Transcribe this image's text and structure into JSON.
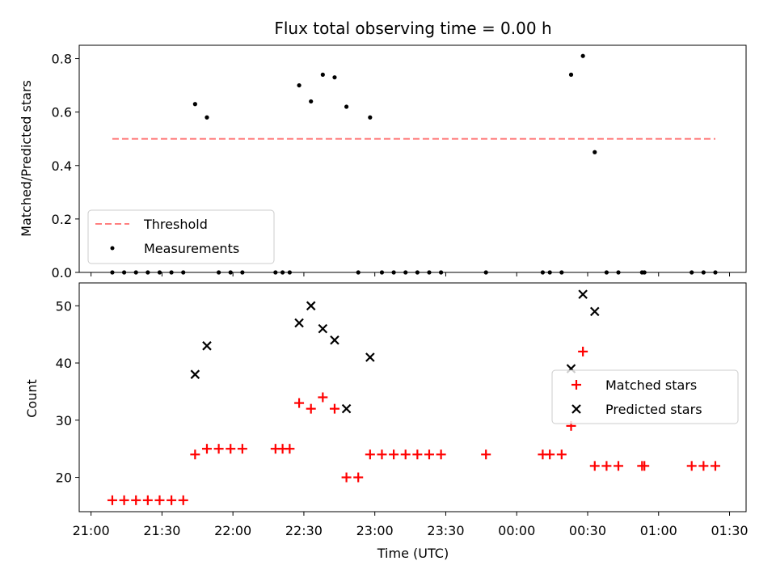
{
  "chart_data": [
    {
      "type": "scatter",
      "title": "Flux total observing time = 0.00 h",
      "ylabel": "Matched/Predicted stars",
      "xlabel": "",
      "ylim": [
        0,
        0.85
      ],
      "yticks": [
        "0.0",
        "0.2",
        "0.4",
        "0.6",
        "0.8"
      ],
      "legend": "lower-left",
      "threshold": {
        "name": "Threshold",
        "value": 0.5,
        "x_start": "21:09",
        "x_end": "01:24",
        "color": "#ff7f7f"
      },
      "series": [
        {
          "name": "Measurements",
          "color": "#000000",
          "points": [
            [
              "21:09",
              0
            ],
            [
              "21:14",
              0
            ],
            [
              "21:19",
              0
            ],
            [
              "21:24",
              0
            ],
            [
              "21:29",
              0
            ],
            [
              "21:34",
              0
            ],
            [
              "21:39",
              0
            ],
            [
              "21:44",
              0.63
            ],
            [
              "21:49",
              0.58
            ],
            [
              "21:54",
              0
            ],
            [
              "21:59",
              0
            ],
            [
              "22:04",
              0
            ],
            [
              "22:18",
              0
            ],
            [
              "22:21",
              0
            ],
            [
              "22:24",
              0
            ],
            [
              "22:28",
              0.7
            ],
            [
              "22:33",
              0.64
            ],
            [
              "22:38",
              0.74
            ],
            [
              "22:43",
              0.73
            ],
            [
              "22:48",
              0.62
            ],
            [
              "22:53",
              0
            ],
            [
              "22:58",
              0.58
            ],
            [
              "23:03",
              0
            ],
            [
              "23:08",
              0
            ],
            [
              "23:13",
              0
            ],
            [
              "23:18",
              0
            ],
            [
              "23:23",
              0
            ],
            [
              "23:28",
              0
            ],
            [
              "23:47",
              0
            ],
            [
              "00:11",
              0
            ],
            [
              "00:14",
              0
            ],
            [
              "00:19",
              0
            ],
            [
              "00:23",
              0.74
            ],
            [
              "00:28",
              0.81
            ],
            [
              "00:33",
              0.45
            ],
            [
              "00:38",
              0
            ],
            [
              "00:43",
              0
            ],
            [
              "00:53",
              0
            ],
            [
              "00:54",
              0
            ],
            [
              "01:14",
              0
            ],
            [
              "01:19",
              0
            ],
            [
              "01:24",
              0
            ]
          ]
        }
      ]
    },
    {
      "type": "scatter",
      "title": "",
      "ylabel": "Count",
      "xlabel": "Time (UTC)",
      "ylim": [
        14,
        54
      ],
      "yticks": [
        "20",
        "30",
        "40",
        "50"
      ],
      "xticks": [
        "21:00",
        "21:30",
        "22:00",
        "22:30",
        "23:00",
        "23:30",
        "00:00",
        "00:30",
        "01:00",
        "01:30"
      ],
      "legend": "center-right",
      "series": [
        {
          "name": "Matched stars",
          "marker": "plus",
          "color": "#ff0000",
          "points": [
            [
              "21:09",
              16
            ],
            [
              "21:14",
              16
            ],
            [
              "21:19",
              16
            ],
            [
              "21:24",
              16
            ],
            [
              "21:29",
              16
            ],
            [
              "21:34",
              16
            ],
            [
              "21:39",
              16
            ],
            [
              "21:44",
              24
            ],
            [
              "21:49",
              25
            ],
            [
              "21:54",
              25
            ],
            [
              "21:59",
              25
            ],
            [
              "22:04",
              25
            ],
            [
              "22:18",
              25
            ],
            [
              "22:21",
              25
            ],
            [
              "22:24",
              25
            ],
            [
              "22:28",
              33
            ],
            [
              "22:33",
              32
            ],
            [
              "22:38",
              34
            ],
            [
              "22:43",
              32
            ],
            [
              "22:48",
              20
            ],
            [
              "22:53",
              20
            ],
            [
              "22:58",
              24
            ],
            [
              "23:03",
              24
            ],
            [
              "23:08",
              24
            ],
            [
              "23:13",
              24
            ],
            [
              "23:18",
              24
            ],
            [
              "23:23",
              24
            ],
            [
              "23:28",
              24
            ],
            [
              "23:47",
              24
            ],
            [
              "00:11",
              24
            ],
            [
              "00:14",
              24
            ],
            [
              "00:19",
              24
            ],
            [
              "00:23",
              29
            ],
            [
              "00:28",
              42
            ],
            [
              "00:33",
              22
            ],
            [
              "00:38",
              22
            ],
            [
              "00:43",
              22
            ],
            [
              "00:53",
              22
            ],
            [
              "00:54",
              22
            ],
            [
              "01:14",
              22
            ],
            [
              "01:19",
              22
            ],
            [
              "01:24",
              22
            ]
          ]
        },
        {
          "name": "Predicted stars",
          "marker": "x",
          "color": "#000000",
          "points": [
            [
              "21:44",
              38
            ],
            [
              "21:49",
              43
            ],
            [
              "22:28",
              47
            ],
            [
              "22:33",
              50
            ],
            [
              "22:38",
              46
            ],
            [
              "22:43",
              44
            ],
            [
              "22:48",
              32
            ],
            [
              "22:58",
              41
            ],
            [
              "00:23",
              39
            ],
            [
              "00:28",
              52
            ],
            [
              "00:33",
              49
            ]
          ]
        }
      ]
    }
  ]
}
